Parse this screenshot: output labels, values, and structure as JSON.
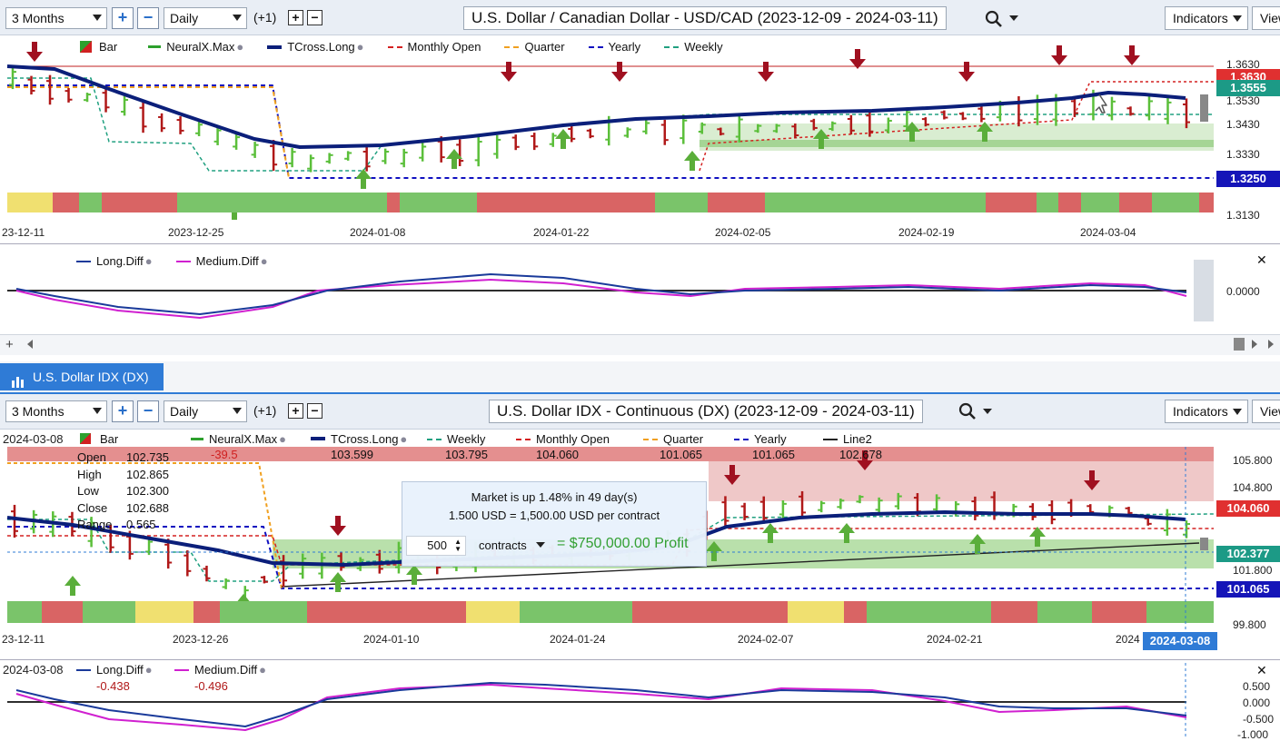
{
  "top": {
    "range": "3 Months",
    "interval": "Daily",
    "offset": "(+1)",
    "title": "U.S. Dollar / Canadian Dollar - USD/CAD (2023-12-09 - 2024-03-11)",
    "indicators": "Indicators",
    "view": "View",
    "legend": [
      "Bar",
      "NeuralX.Max",
      "TCross.Long",
      "Monthly Open",
      "Quarter",
      "Yearly",
      "Weekly"
    ],
    "axis": [
      "1.3630",
      "1.3530",
      "1.3430",
      "1.3330",
      "1.3130"
    ],
    "price_tags": {
      "red": "1.3630",
      "teal": "1.3555",
      "blue": "1.3250"
    },
    "dates": [
      "23-12-11",
      "2023-12-25",
      "2024-01-08",
      "2024-01-22",
      "2024-02-05",
      "2024-02-19",
      "2024-03-04"
    ],
    "sub_legend": [
      "Long.Diff",
      "Medium.Diff"
    ],
    "sub_axis": "0.0000"
  },
  "bottom": {
    "tab": "U.S. Dollar IDX (DX)",
    "range": "3 Months",
    "interval": "Daily",
    "offset": "(+1)",
    "title": "U.S. Dollar IDX - Continuous (DX) (2023-12-09 - 2024-03-11)",
    "indicators": "Indicators",
    "view": "View",
    "date_label": "2024-03-08",
    "legend": [
      {
        "name": "Bar",
        "value": ""
      },
      {
        "name": "NeuralX.Max",
        "value": "-39.5"
      },
      {
        "name": "TCross.Long",
        "value": "103.599"
      },
      {
        "name": "Weekly",
        "value": "103.795"
      },
      {
        "name": "Monthly Open",
        "value": "104.060"
      },
      {
        "name": "Quarter",
        "value": "101.065"
      },
      {
        "name": "Yearly",
        "value": "101.065"
      },
      {
        "name": "Line2",
        "value": "102.678"
      }
    ],
    "ohlc": {
      "open_label": "Open",
      "open": "102.735",
      "high_label": "High",
      "high": "102.865",
      "low_label": "Low",
      "low": "102.300",
      "close_label": "Close",
      "close": "102.688",
      "range_label": "Range",
      "range": "0.565"
    },
    "popup": {
      "line1": "Market is up 1.48% in 49 day(s)",
      "line2": "1.500 USD = 1,500.00 USD per contract",
      "qty": "500",
      "unit": "contracts",
      "profit": "= $750,000.00 Profit"
    },
    "axis": [
      "105.800",
      "104.800",
      "101.800",
      "99.800"
    ],
    "price_tags": {
      "red": "104.060",
      "teal": "102.377",
      "blue": "101.065"
    },
    "dates": [
      "23-12-11",
      "2023-12-26",
      "2024-01-10",
      "2024-01-24",
      "2024-02-07",
      "2024-02-21",
      "2024"
    ],
    "cursor_date": "2024-03-08",
    "sub_date": "2024-03-08",
    "sub_legend": [
      {
        "name": "Long.Diff",
        "value": "-0.438"
      },
      {
        "name": "Medium.Diff",
        "value": "-0.496"
      }
    ],
    "sub_axis": [
      "0.500",
      "0.000",
      "-0.500",
      "-1.000"
    ]
  },
  "colors": {
    "bull": "#5bbf3a",
    "bear": "#b01818",
    "tcross": "#0b1f7a",
    "monthly": "#d42020",
    "quarter": "#f0a020",
    "yearly": "#1010c0",
    "weekly": "#20a080"
  }
}
